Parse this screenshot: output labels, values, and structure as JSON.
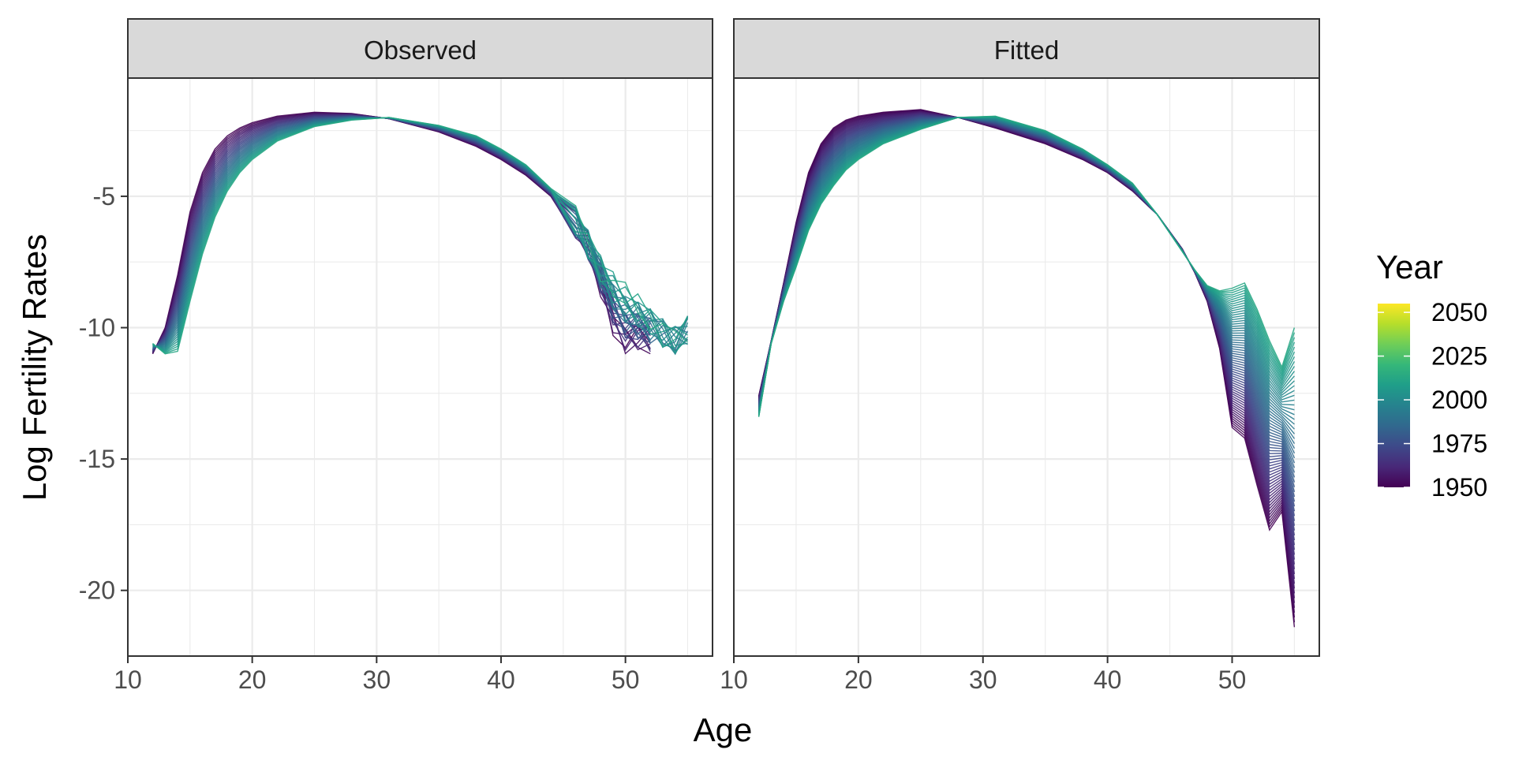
{
  "chart_data": {
    "type": "line",
    "facets": [
      "Observed",
      "Fitted"
    ],
    "xlabel": "Age",
    "ylabel": "Log Fertility Rates",
    "xlim": [
      10,
      57
    ],
    "ylim": [
      -22.5,
      -0.5
    ],
    "x_ticks": [
      10,
      20,
      30,
      40,
      50
    ],
    "x_tick_labels": [
      "10",
      "20",
      "30",
      "40",
      "50"
    ],
    "y_ticks": [
      -5,
      -10,
      -15,
      -20
    ],
    "y_tick_labels": [
      "-5",
      "-10",
      "-15",
      "-20"
    ],
    "grid": true,
    "legend": {
      "title": "Year",
      "position": "right",
      "type": "colorbar",
      "range": [
        1950,
        2055
      ],
      "ticks": [
        1950,
        1975,
        2000,
        2025,
        2050
      ],
      "labels": [
        "1950",
        "1975",
        "2000",
        "2025",
        "2050"
      ],
      "colors": [
        "#440154",
        "#482878",
        "#3e4989",
        "#31688e",
        "#26828e",
        "#1f9e89",
        "#35b779",
        "#6ece58",
        "#b5de2b",
        "#fde725"
      ]
    },
    "series": [
      {
        "facet": "Observed",
        "year_from": 1950,
        "year_to": 2012,
        "step": 2,
        "x": [
          12,
          13,
          14,
          15,
          16,
          17,
          18,
          19,
          20,
          22,
          25,
          28,
          31,
          35,
          38,
          40,
          42,
          44,
          46,
          47,
          48,
          49,
          50,
          51,
          52,
          53,
          54,
          55
        ],
        "first_year": [
          -11.0,
          -10.0,
          -8.0,
          -5.6,
          -4.1,
          -3.2,
          -2.7,
          -2.4,
          -2.2,
          -1.95,
          -1.8,
          -1.85,
          -2.05,
          -2.55,
          -3.1,
          -3.6,
          -4.2,
          -5.0,
          -6.1,
          -6.9,
          -8.3,
          -9.8,
          -10.6,
          -10.5,
          -10.6,
          null,
          null,
          null
        ],
        "last_year": [
          -10.6,
          -11.0,
          -10.9,
          -9.0,
          -7.2,
          -5.8,
          -4.8,
          -4.1,
          -3.6,
          -2.9,
          -2.35,
          -2.1,
          -2.0,
          -2.3,
          -2.7,
          -3.2,
          -3.8,
          -4.7,
          -5.9,
          -6.8,
          -7.7,
          -8.3,
          -8.8,
          -9.2,
          -9.6,
          -10.2,
          -10.5,
          -10.1
        ]
      },
      {
        "facet": "Fitted",
        "year_from": 1950,
        "year_to": 2012,
        "step": 1,
        "x": [
          12,
          13,
          14,
          15,
          16,
          17,
          18,
          19,
          20,
          22,
          25,
          28,
          31,
          35,
          38,
          40,
          42,
          44,
          46,
          47,
          48,
          49,
          50,
          51,
          52,
          53,
          54,
          55
        ],
        "first_year": [
          -12.6,
          -10.5,
          -8.3,
          -6.0,
          -4.1,
          -3.0,
          -2.4,
          -2.1,
          -1.95,
          -1.8,
          -1.7,
          -2.0,
          -2.4,
          -3.0,
          -3.6,
          -4.1,
          -4.8,
          -5.7,
          -7.0,
          -7.9,
          -9.0,
          -10.8,
          -13.8,
          -14.2,
          -16.0,
          -17.7,
          -17.0,
          -21.4
        ],
        "last_year": [
          -13.4,
          -10.6,
          -9.0,
          -7.7,
          -6.3,
          -5.3,
          -4.6,
          -4.0,
          -3.6,
          -3.0,
          -2.45,
          -2.0,
          -1.95,
          -2.5,
          -3.2,
          -3.8,
          -4.5,
          -5.7,
          -7.1,
          -7.8,
          -8.4,
          -8.6,
          -8.5,
          -8.3,
          -9.3,
          -10.5,
          -11.5,
          -10.0
        ]
      }
    ]
  }
}
